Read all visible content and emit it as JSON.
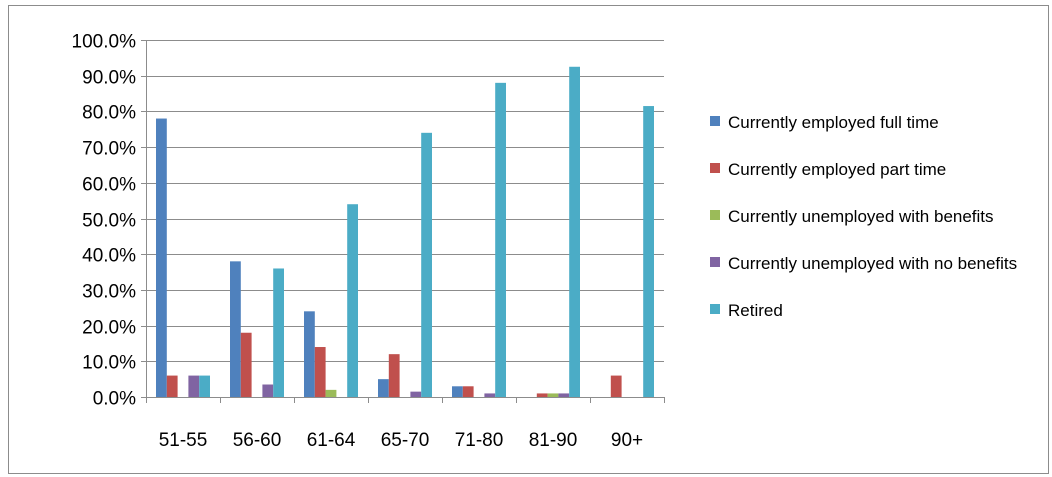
{
  "chart_data": {
    "type": "bar",
    "title": "",
    "xlabel": "",
    "ylabel": "",
    "categories": [
      "51-55",
      "56-60",
      "61-64",
      "65-70",
      "71-80",
      "81-90",
      "90+"
    ],
    "ylim": [
      0,
      100
    ],
    "yticks": [
      "0.0%",
      "10.0%",
      "20.0%",
      "30.0%",
      "40.0%",
      "50.0%",
      "60.0%",
      "70.0%",
      "80.0%",
      "90.0%",
      "100.0%"
    ],
    "grid": true,
    "legend_position": "right",
    "series": [
      {
        "name": "Currently employed full time",
        "color": "#4F81BD",
        "values": [
          78,
          38,
          24,
          5,
          3,
          0,
          0
        ]
      },
      {
        "name": "Currently employed part time",
        "color": "#C0504D",
        "values": [
          6,
          18,
          14,
          12,
          3,
          1,
          6
        ]
      },
      {
        "name": "Currently unemployed with benefits",
        "color": "#9BBB59",
        "values": [
          0,
          0,
          2,
          0,
          0,
          1,
          0
        ]
      },
      {
        "name": "Currently unemployed with no benefits",
        "color": "#8064A2",
        "values": [
          6,
          3.5,
          0,
          1.5,
          1,
          1,
          0
        ]
      },
      {
        "name": "Retired",
        "color": "#4BACC6",
        "values": [
          6,
          36,
          54,
          74,
          88,
          92.5,
          81.5
        ]
      }
    ]
  }
}
